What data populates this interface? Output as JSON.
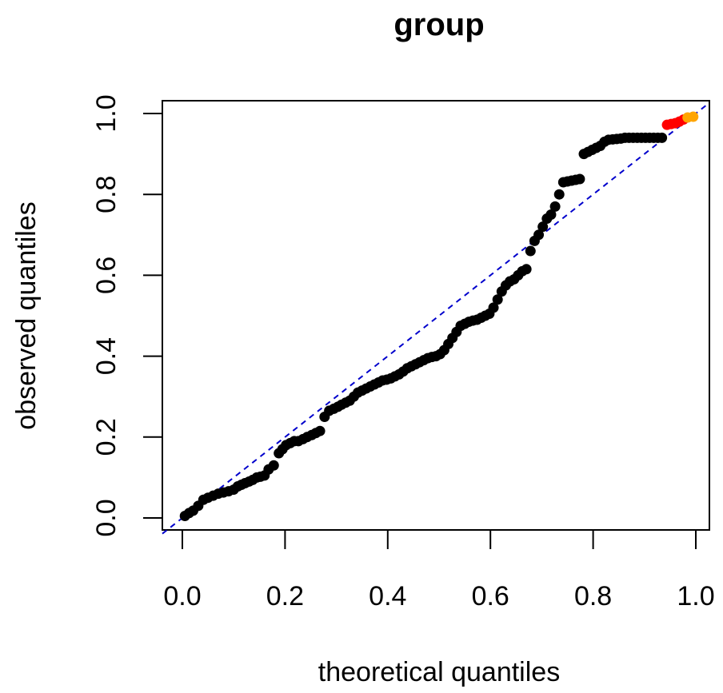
{
  "chart_data": {
    "type": "scatter",
    "title": "group",
    "xlabel": "theoretical quantiles",
    "ylabel": "observed quantiles",
    "xlim": [
      0.0,
      1.0
    ],
    "ylim": [
      0.0,
      1.0
    ],
    "xticks": [
      "0.0",
      "0.2",
      "0.4",
      "0.6",
      "0.8",
      "1.0"
    ],
    "yticks": [
      "0.0",
      "0.2",
      "0.4",
      "0.6",
      "0.8",
      "1.0"
    ],
    "reference_line": {
      "from": [
        0,
        0
      ],
      "to": [
        1,
        1
      ],
      "color": "#0000cc",
      "style": "dashed"
    },
    "colors": {
      "default": "#000000",
      "highlight_red": "#ff0000",
      "highlight_orange": "#ffa500"
    },
    "series": [
      {
        "color": "#000000",
        "x": [
          0.005,
          0.013,
          0.021,
          0.031,
          0.041,
          0.05,
          0.06,
          0.07,
          0.08,
          0.09,
          0.1,
          0.108,
          0.115,
          0.122,
          0.13,
          0.137,
          0.145,
          0.152,
          0.16,
          0.168,
          0.178,
          0.188,
          0.195,
          0.202,
          0.21,
          0.218,
          0.226,
          0.235,
          0.243,
          0.252,
          0.26,
          0.268,
          0.277,
          0.286,
          0.295,
          0.303,
          0.31,
          0.318,
          0.326,
          0.334,
          0.342,
          0.35,
          0.358,
          0.366,
          0.374,
          0.382,
          0.39,
          0.398,
          0.406,
          0.414,
          0.422,
          0.43,
          0.438,
          0.446,
          0.454,
          0.462,
          0.47,
          0.478,
          0.486,
          0.494,
          0.502,
          0.51,
          0.518,
          0.526,
          0.534,
          0.542,
          0.55,
          0.558,
          0.566,
          0.574,
          0.582,
          0.59,
          0.598,
          0.606,
          0.614,
          0.622,
          0.63,
          0.638,
          0.646,
          0.654,
          0.662,
          0.67,
          0.678,
          0.686,
          0.694,
          0.702,
          0.71,
          0.718,
          0.726,
          0.734,
          0.742,
          0.75,
          0.758,
          0.766,
          0.774,
          0.782,
          0.79,
          0.798,
          0.806,
          0.814,
          0.822,
          0.83,
          0.838,
          0.846,
          0.854,
          0.862,
          0.87,
          0.878,
          0.886,
          0.894,
          0.902,
          0.91,
          0.918,
          0.926,
          0.934
        ],
        "y": [
          0.005,
          0.012,
          0.018,
          0.03,
          0.045,
          0.05,
          0.055,
          0.06,
          0.063,
          0.066,
          0.07,
          0.078,
          0.082,
          0.086,
          0.09,
          0.094,
          0.1,
          0.102,
          0.105,
          0.12,
          0.13,
          0.16,
          0.17,
          0.18,
          0.185,
          0.19,
          0.19,
          0.195,
          0.2,
          0.205,
          0.21,
          0.215,
          0.25,
          0.265,
          0.27,
          0.275,
          0.28,
          0.285,
          0.29,
          0.3,
          0.31,
          0.315,
          0.32,
          0.325,
          0.33,
          0.335,
          0.34,
          0.342,
          0.345,
          0.35,
          0.355,
          0.362,
          0.37,
          0.375,
          0.38,
          0.385,
          0.39,
          0.395,
          0.398,
          0.4,
          0.405,
          0.415,
          0.43,
          0.445,
          0.46,
          0.475,
          0.48,
          0.485,
          0.488,
          0.49,
          0.495,
          0.5,
          0.505,
          0.52,
          0.54,
          0.56,
          0.575,
          0.585,
          0.59,
          0.6,
          0.61,
          0.615,
          0.66,
          0.685,
          0.7,
          0.72,
          0.74,
          0.75,
          0.77,
          0.8,
          0.83,
          0.832,
          0.834,
          0.836,
          0.838,
          0.9,
          0.905,
          0.91,
          0.915,
          0.92,
          0.93,
          0.935,
          0.936,
          0.937,
          0.938,
          0.94,
          0.94,
          0.94,
          0.94,
          0.94,
          0.94,
          0.94,
          0.94,
          0.94,
          0.94
        ]
      },
      {
        "color": "#ff0000",
        "x": [
          0.944,
          0.952,
          0.96,
          0.968,
          0.976
        ],
        "y": [
          0.972,
          0.974,
          0.976,
          0.98,
          0.985
        ]
      },
      {
        "color": "#ffa500",
        "x": [
          0.984,
          0.995
        ],
        "y": [
          0.99,
          0.992
        ]
      }
    ]
  }
}
